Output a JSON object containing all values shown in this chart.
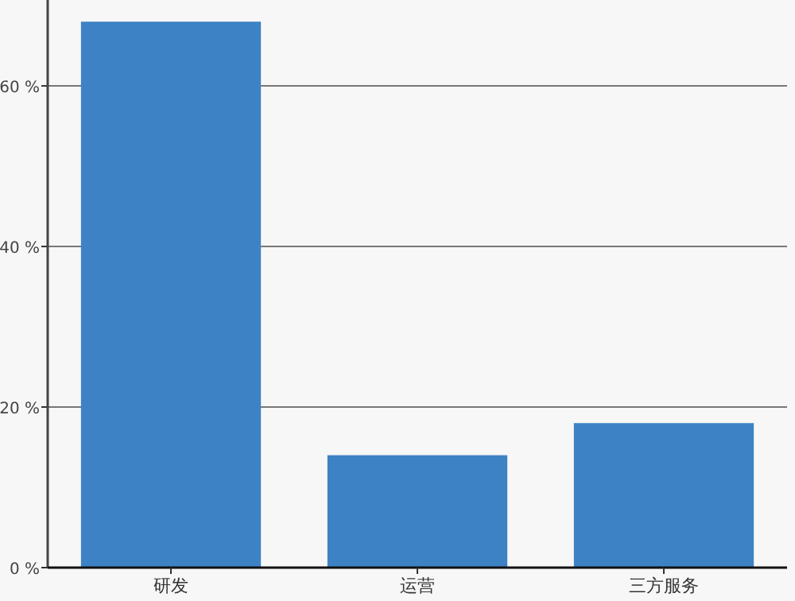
{
  "chart_data": {
    "type": "bar",
    "categories": [
      "研发",
      "运营",
      "三方服务"
    ],
    "values": [
      68,
      14,
      18
    ],
    "color": "#3d82c4",
    "ylim": [
      0,
      70.7
    ],
    "yticks": [
      {
        "value": 0,
        "label": "0 %"
      },
      {
        "value": 20,
        "label": "20 %"
      },
      {
        "value": 40,
        "label": "40 %"
      },
      {
        "value": 60,
        "label": "60 %"
      }
    ],
    "grid": "y"
  }
}
